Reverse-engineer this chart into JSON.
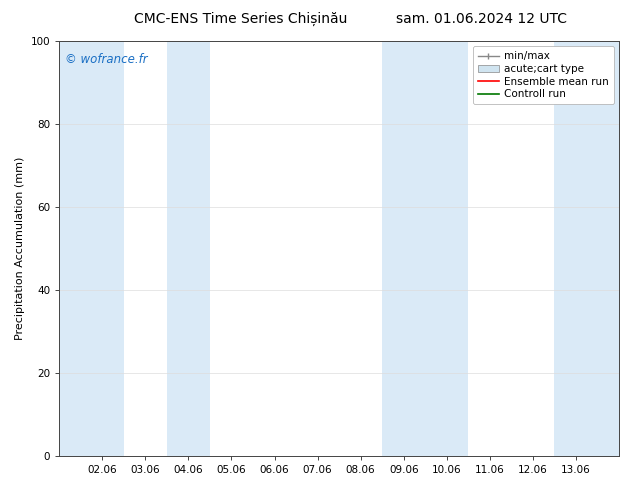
{
  "title_left": "CMC-ENS Time Series Chișinău",
  "title_right": "sam. 01.06.2024 12 UTC",
  "ylabel": "Precipitation Accumulation (mm)",
  "ylim": [
    0,
    100
  ],
  "yticks": [
    0,
    20,
    40,
    60,
    80,
    100
  ],
  "x_tick_labels": [
    "02.06",
    "03.06",
    "04.06",
    "05.06",
    "06.06",
    "07.06",
    "08.06",
    "09.06",
    "10.06",
    "11.06",
    "12.06",
    "13.06"
  ],
  "x_tick_positions": [
    1,
    2,
    3,
    4,
    5,
    6,
    7,
    8,
    9,
    10,
    11,
    12
  ],
  "xlim": [
    0,
    13
  ],
  "shaded_bands": [
    {
      "xmin": 0,
      "xmax": 1.5,
      "color": "#daeaf7"
    },
    {
      "xmin": 1.5,
      "xmax": 2.5,
      "color": "#ffffff"
    },
    {
      "xmin": 2.5,
      "xmax": 3.5,
      "color": "#daeaf7"
    },
    {
      "xmin": 3.5,
      "xmax": 4.5,
      "color": "#ffffff"
    },
    {
      "xmin": 4.5,
      "xmax": 5.5,
      "color": "#ffffff"
    },
    {
      "xmin": 5.5,
      "xmax": 6.5,
      "color": "#ffffff"
    },
    {
      "xmin": 6.5,
      "xmax": 7.5,
      "color": "#ffffff"
    },
    {
      "xmin": 7.5,
      "xmax": 8.5,
      "color": "#daeaf7"
    },
    {
      "xmin": 8.5,
      "xmax": 9.5,
      "color": "#daeaf7"
    },
    {
      "xmin": 9.5,
      "xmax": 10.5,
      "color": "#ffffff"
    },
    {
      "xmin": 10.5,
      "xmax": 11.5,
      "color": "#ffffff"
    },
    {
      "xmin": 11.5,
      "xmax": 13,
      "color": "#daeaf7"
    }
  ],
  "legend_labels": [
    "min/max",
    "acute;cart type",
    "Ensemble mean run",
    "Controll run"
  ],
  "legend_line_color": "#888888",
  "legend_patch_color": "#d0e4f0",
  "legend_ensemble_color": "#ff0000",
  "legend_control_color": "#007700",
  "watermark": "© wofrance.fr",
  "watermark_color": "#1a6fc4",
  "background_color": "#ffffff",
  "plot_bg_color": "#ffffff",
  "title_fontsize": 10,
  "axis_label_fontsize": 8,
  "tick_fontsize": 7.5,
  "legend_fontsize": 7.5
}
